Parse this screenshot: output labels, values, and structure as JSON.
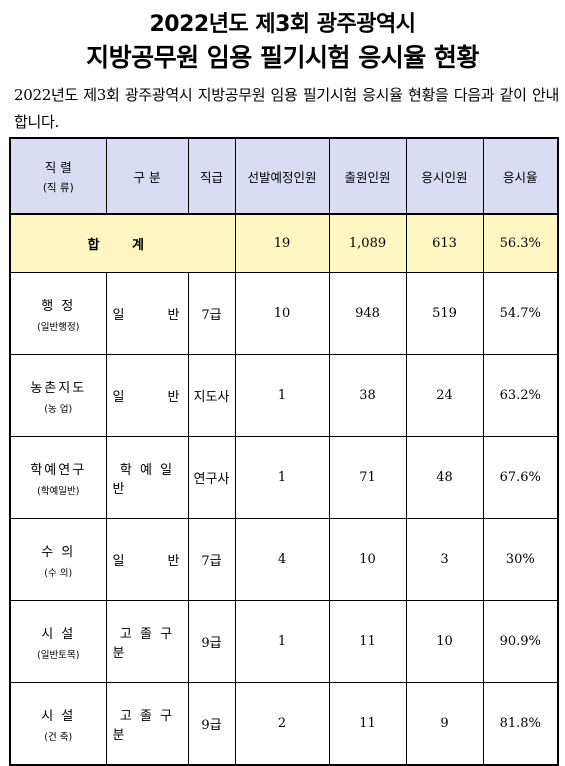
{
  "title_line1": "2022년도 제3회 광주광역시",
  "title_line2": "지방공무원 임용 필기시험 응시율 현황",
  "intro": "2022년도 제3회 광주광역시 지방공무원 임용 필기시험 응시율 현황을 다음과 같이 안내합니다.",
  "table": {
    "headers": {
      "job": "직 렬",
      "job_sub": "(직 류)",
      "gubun": "구 분",
      "grade": "직급",
      "planned": "선발예정인원",
      "applied": "출원인원",
      "attended": "응시인원",
      "rate": "응시율"
    },
    "total": {
      "label": "합 계",
      "planned": "19",
      "applied": "1,089",
      "attended": "613",
      "rate": "56.3%"
    },
    "rows": [
      {
        "job": "행 정",
        "job_sub": "(일반행정)",
        "gubun": "일 반",
        "grade": "7급",
        "planned": "10",
        "applied": "948",
        "attended": "519",
        "rate": "54.7%"
      },
      {
        "job": "농촌지도",
        "job_sub": "(농 업)",
        "gubun": "일 반",
        "grade": "지도사",
        "planned": "1",
        "applied": "38",
        "attended": "24",
        "rate": "63.2%"
      },
      {
        "job": "학예연구",
        "job_sub": "(학예일반)",
        "gubun": "학 예 일 반",
        "grade": "연구사",
        "planned": "1",
        "applied": "71",
        "attended": "48",
        "rate": "67.6%"
      },
      {
        "job": "수 의",
        "job_sub": "(수 의)",
        "gubun": "일 반",
        "grade": "7급",
        "planned": "4",
        "applied": "10",
        "attended": "3",
        "rate": "30%"
      },
      {
        "job": "시 설",
        "job_sub": "(일반토목)",
        "gubun": "고 졸 구 분",
        "grade": "9급",
        "planned": "1",
        "applied": "11",
        "attended": "10",
        "rate": "90.9%"
      },
      {
        "job": "시 설",
        "job_sub": "(건 축)",
        "gubun": "고 졸 구 분",
        "grade": "9급",
        "planned": "2",
        "applied": "11",
        "attended": "9",
        "rate": "81.8%"
      }
    ]
  }
}
